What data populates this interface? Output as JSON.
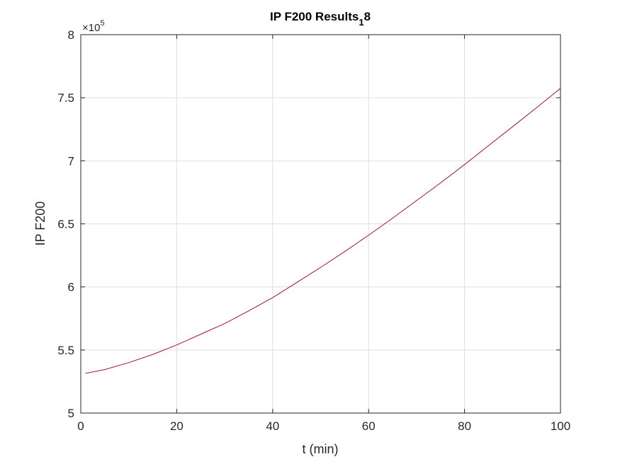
{
  "chart_data": {
    "type": "line",
    "title": {
      "main": "IP F200 Results",
      "subscript": "1",
      "suffix": "8"
    },
    "xlabel": "t (min)",
    "ylabel": "IP F200",
    "y_exponent": {
      "multiplier": "×10",
      "power": "5"
    },
    "xlim": [
      0,
      100
    ],
    "ylim": [
      5,
      8
    ],
    "x_ticks": [
      0,
      20,
      40,
      60,
      80,
      100
    ],
    "y_ticks": [
      5,
      5.5,
      6,
      6.5,
      7,
      7.5,
      8
    ],
    "y_tick_labels": [
      "5",
      "5.5",
      "6",
      "6.5",
      "7",
      "7.5",
      "8"
    ],
    "grid": true,
    "series": [
      {
        "color": "#a2142f",
        "x": [
          1,
          5,
          10,
          15,
          20,
          25,
          30,
          35,
          40,
          45,
          50,
          55,
          60,
          65,
          70,
          75,
          80,
          85,
          90,
          95,
          100
        ],
        "y": [
          5.315,
          5.345,
          5.4,
          5.465,
          5.54,
          5.625,
          5.71,
          5.81,
          5.915,
          6.035,
          6.155,
          6.28,
          6.41,
          6.545,
          6.685,
          6.825,
          6.97,
          7.12,
          7.27,
          7.42,
          7.575
        ]
      }
    ]
  }
}
